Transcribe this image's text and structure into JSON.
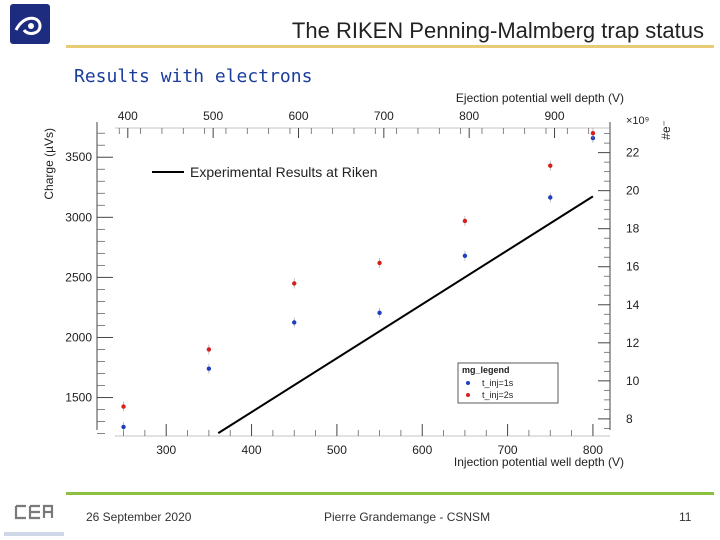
{
  "header": {
    "title": "The RIKEN Penning-Malmberg trap status",
    "subtitle": "Results with electrons"
  },
  "footer": {
    "date": "26 September 2020",
    "author": "Pierre Grandemange - CSNSM",
    "page": "11"
  },
  "colors": {
    "accent_rule": "#e9cb74",
    "footer_rule": "#8cc13f",
    "subtitle": "#1a3d9c",
    "logo": "#1d2c7e",
    "series_1s": "#1f3fbf",
    "series_2s": "#d62020",
    "experimental_line": "#000000"
  },
  "chart_data": {
    "type": "scatter",
    "top_axis_label": "Ejection potential well depth (V)",
    "bottom_axis_label": "Injection potential well depth (V)",
    "left_axis_label": "Charge (µVs)",
    "right_axis_label": "#e⁻",
    "right_axis_multiplier": "×10⁹",
    "top_ticks": [
      "400",
      "500",
      "600",
      "700",
      "800",
      "900"
    ],
    "bottom_ticks": [
      "300",
      "400",
      "500",
      "600",
      "700",
      "800"
    ],
    "left_ticks": [
      "1500",
      "2000",
      "2500",
      "3000",
      "3500"
    ],
    "right_ticks": [
      "8",
      "10",
      "12",
      "14",
      "16",
      "18",
      "20",
      "22"
    ],
    "xlim_injection": [
      240,
      820
    ],
    "ylim_charge": [
      1180,
      3760
    ],
    "right_lim": [
      7.1,
      23.4
    ],
    "legend_title": "mg_legend",
    "annotation": "Experimental Results at Riken",
    "series": [
      {
        "name": "t_inj=1s",
        "x_injection": [
          250,
          350,
          450,
          550,
          650,
          750,
          800
        ],
        "charge": [
          1255,
          1740,
          2125,
          2205,
          2680,
          3165,
          3660
        ]
      },
      {
        "name": "t_inj=2s",
        "x_injection": [
          250,
          350,
          450,
          550,
          650,
          750,
          800
        ],
        "charge": [
          1425,
          1900,
          2450,
          2620,
          2970,
          3430,
          3700
        ]
      }
    ],
    "experimental_line": {
      "x_injection": [
        361,
        800
      ],
      "electrons_e9": [
        7.25,
        19.7
      ]
    }
  }
}
